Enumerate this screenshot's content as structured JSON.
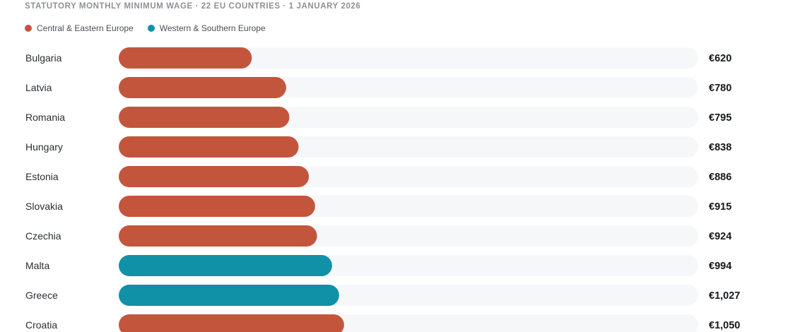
{
  "colors": {
    "central_eastern": "#c4553d",
    "western_southern": "#1191a8",
    "track": "#f5f7f9"
  },
  "legend": [
    {
      "label": "Central & Eastern Europe",
      "color_key": "central_eastern"
    },
    {
      "label": "Western & Southern Europe",
      "color_key": "western_southern"
    }
  ],
  "chart_data": {
    "type": "bar",
    "orientation": "horizontal",
    "title": "STATUTORY MONTHLY MINIMUM WAGE · 22 EU COUNTRIES · 1 JANUARY 2026",
    "xlabel": "",
    "ylabel": "",
    "xlim": [
      0,
      2700
    ],
    "grid": false,
    "legend_position": "top-left",
    "categories": [
      "Bulgaria",
      "Latvia",
      "Romania",
      "Hungary",
      "Estonia",
      "Slovakia",
      "Czechia",
      "Malta",
      "Greece",
      "Croatia"
    ],
    "values": [
      620,
      780,
      795,
      838,
      886,
      915,
      924,
      994,
      1027,
      1050
    ],
    "value_labels": [
      "€620",
      "€780",
      "€795",
      "€838",
      "€886",
      "€915",
      "€924",
      "€994",
      "€1,027",
      "€1,050"
    ],
    "groups": [
      "central_eastern",
      "central_eastern",
      "central_eastern",
      "central_eastern",
      "central_eastern",
      "central_eastern",
      "central_eastern",
      "western_southern",
      "western_southern",
      "central_eastern"
    ]
  }
}
